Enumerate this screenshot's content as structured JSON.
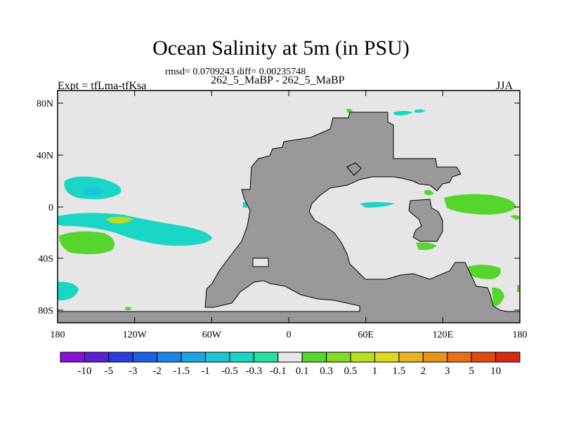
{
  "title": "Ocean Salinity at 5m (in PSU)",
  "rmsd_text": "rmsd= 0.0709243 diff= 0.00235748",
  "subtitle": "262_5_MaBP - 262_5_MaBP",
  "expt_label": "Expt = tfLma-tfKsa",
  "season": "JJA",
  "lat_ticks": [
    "80N",
    "40N",
    "0",
    "40S",
    "80S"
  ],
  "lon_ticks": [
    "180",
    "120W",
    "60W",
    "0",
    "60E",
    "120E",
    "180"
  ],
  "colorbar": {
    "labels": [
      "-10",
      "-5",
      "-3",
      "-2",
      "-1.5",
      "-1",
      "-0.5",
      "-0.3",
      "-0.1",
      "0.1",
      "0.3",
      "0.5",
      "1",
      "1.5",
      "2",
      "3",
      "5",
      "10"
    ],
    "colors": [
      "#8a0fdd",
      "#5a20d8",
      "#2a3ee0",
      "#1f5fe6",
      "#1c86e6",
      "#1ca6e2",
      "#1cc6d6",
      "#1ad6c4",
      "#26e0a6",
      "#e8e8e8",
      "#56d52c",
      "#80dc22",
      "#b8e01e",
      "#e0d81c",
      "#e8b41c",
      "#e89418",
      "#e87016",
      "#e04a12",
      "#d82a10"
    ]
  },
  "map_colors": {
    "background": "#e6e6e6",
    "land": "#999999"
  }
}
